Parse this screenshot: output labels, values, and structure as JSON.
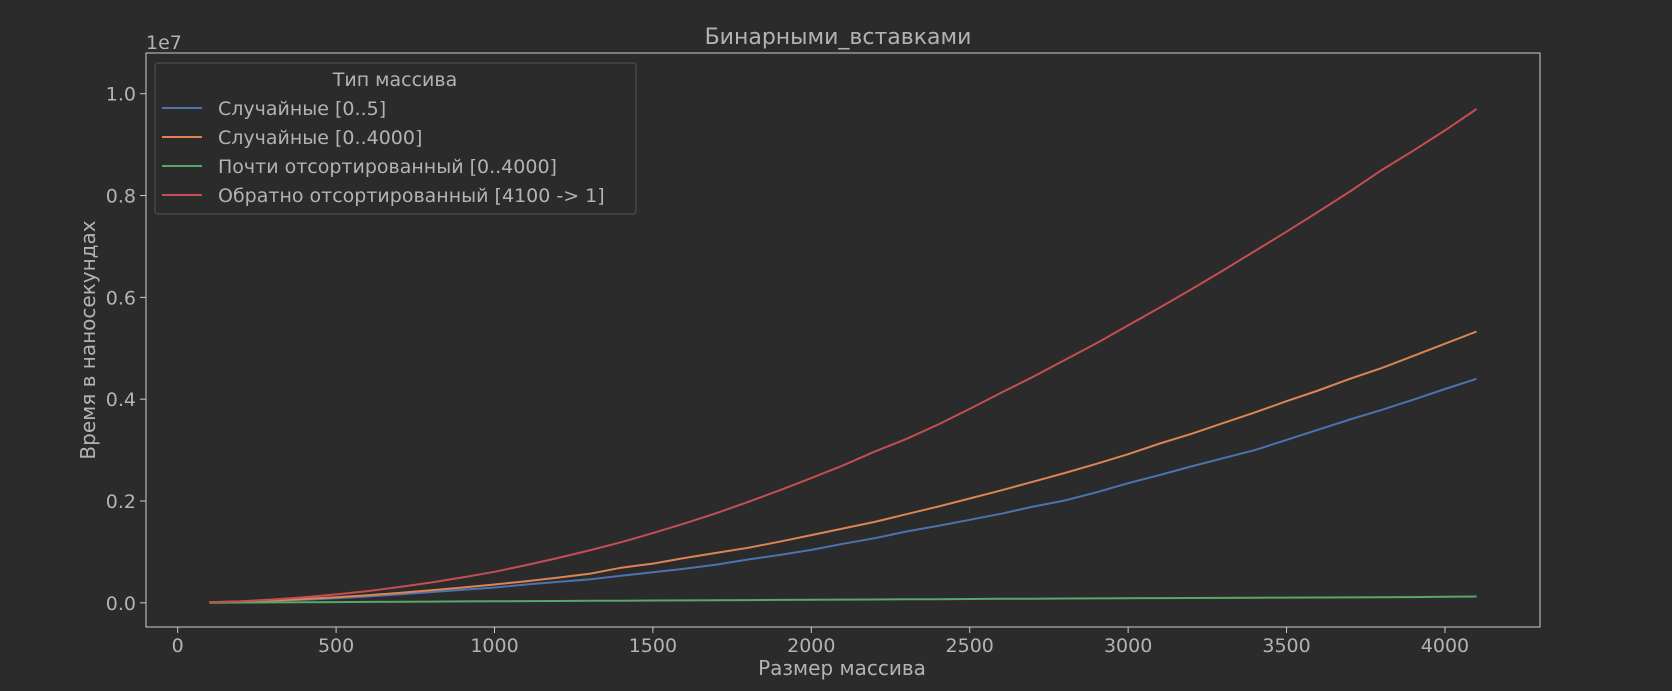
{
  "chart_data": {
    "type": "line",
    "title": "Бинарными_вставками",
    "xlabel": "Размер массива",
    "ylabel": "Время в наносекундах",
    "y_offset_label": "1e7",
    "xlim": [
      -100,
      4300
    ],
    "ylim": [
      -475000,
      10800000
    ],
    "x_ticks": [
      0,
      500,
      1000,
      1500,
      2000,
      2500,
      3000,
      3500,
      4000
    ],
    "x_tick_labels": [
      "0",
      "500",
      "1000",
      "1500",
      "2000",
      "2500",
      "3000",
      "3500",
      "4000"
    ],
    "y_ticks": [
      0,
      2000000,
      4000000,
      6000000,
      8000000,
      10000000
    ],
    "y_tick_labels": [
      "0.0",
      "0.2",
      "0.4",
      "0.6",
      "0.8",
      "1.0"
    ],
    "grid": false,
    "legend_title": "Тип массива",
    "legend_position": "top-left",
    "x": [
      100,
      200,
      300,
      400,
      500,
      600,
      700,
      800,
      900,
      1000,
      1100,
      1200,
      1300,
      1400,
      1500,
      1600,
      1700,
      1800,
      1900,
      2000,
      2100,
      2200,
      2300,
      2400,
      2500,
      2600,
      2700,
      2800,
      2900,
      3000,
      3100,
      3200,
      3300,
      3400,
      3500,
      3600,
      3700,
      3800,
      3900,
      4000,
      4100
    ],
    "series": [
      {
        "name": "Случайные [0..5]",
        "color": "#4c72b0",
        "values": [
          8000,
          20000,
          40000,
          60000,
          90000,
          125000,
          165000,
          210000,
          255000,
          300000,
          360000,
          410000,
          460000,
          530000,
          600000,
          670000,
          750000,
          850000,
          940000,
          1040000,
          1160000,
          1270000,
          1400000,
          1510000,
          1630000,
          1750000,
          1890000,
          2010000,
          2170000,
          2350000,
          2510000,
          2680000,
          2840000,
          3000000,
          3200000,
          3400000,
          3600000,
          3790000,
          3990000,
          4200000,
          4400000
        ]
      },
      {
        "name": "Случайные [0..4000]",
        "color": "#dd8452",
        "values": [
          10000,
          25000,
          45000,
          75000,
          110000,
          150000,
          195000,
          245000,
          300000,
          360000,
          425000,
          495000,
          570000,
          690000,
          770000,
          880000,
          980000,
          1080000,
          1200000,
          1330000,
          1460000,
          1590000,
          1740000,
          1890000,
          2050000,
          2210000,
          2380000,
          2550000,
          2730000,
          2920000,
          3130000,
          3320000,
          3530000,
          3740000,
          3960000,
          4170000,
          4400000,
          4610000,
          4850000,
          5090000,
          5330000
        ]
      },
      {
        "name": "Почти отсортированный [0..4000]",
        "color": "#55a868",
        "values": [
          3000,
          6000,
          9000,
          12000,
          15000,
          18000,
          21000,
          24000,
          27000,
          30000,
          33000,
          36000,
          39000,
          42000,
          45000,
          48000,
          51000,
          54000,
          57000,
          60000,
          63000,
          66000,
          69000,
          72000,
          75000,
          78000,
          81000,
          84000,
          87000,
          90000,
          92000,
          95000,
          97000,
          100000,
          102000,
          105000,
          107000,
          110000,
          113000,
          118000,
          125000
        ]
      },
      {
        "name": "Обратно отсортированный [4100 -> 1]",
        "color": "#c44e52",
        "values": [
          10000,
          30000,
          65000,
          110000,
          165000,
          230000,
          310000,
          400000,
          500000,
          610000,
          740000,
          880000,
          1030000,
          1190000,
          1370000,
          1560000,
          1760000,
          1980000,
          2210000,
          2450000,
          2700000,
          2970000,
          3220000,
          3500000,
          3810000,
          4130000,
          4440000,
          4770000,
          5100000,
          5450000,
          5800000,
          6160000,
          6530000,
          6910000,
          7290000,
          7680000,
          8080000,
          8500000,
          8880000,
          9280000,
          9700000
        ]
      }
    ]
  }
}
